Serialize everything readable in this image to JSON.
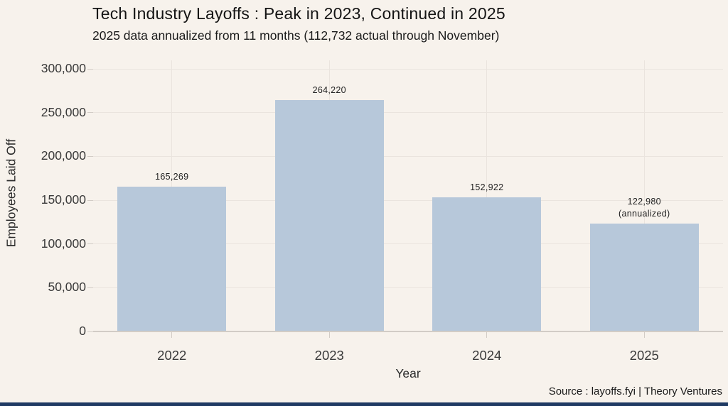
{
  "header": {
    "title": "Tech Industry Layoffs : Peak in 2023, Continued in 2025",
    "subtitle": "2025 data annualized from 11 months (112,732 actual through November)"
  },
  "chart_data": {
    "type": "bar",
    "title": "Tech Industry Layoffs : Peak in 2023, Continued in 2025",
    "subtitle": "2025 data annualized from 11 months (112,732 actual through November)",
    "categories": [
      "2022",
      "2023",
      "2024",
      "2025"
    ],
    "values": [
      165269,
      264220,
      152922,
      122980
    ],
    "bar_value_labels": [
      [
        "165,269"
      ],
      [
        "264,220"
      ],
      [
        "152,922"
      ],
      [
        "122,980",
        "(annualized)"
      ]
    ],
    "xlabel": "Year",
    "ylabel": "Employees Laid Off",
    "ylim": [
      0,
      300000
    ],
    "yticks": [
      0,
      50000,
      100000,
      150000,
      200000,
      250000,
      300000
    ],
    "ytick_labels": [
      "0",
      "50,000",
      "100,000",
      "150,000",
      "200,000",
      "250,000",
      "300,000"
    ],
    "grid": true,
    "legend": "none",
    "note": "2025 value is annualized",
    "bar_color": "#b7c8da",
    "background_color": "#f7f2ec",
    "gridline_color": "#eae4de",
    "accent_color": "#1f3a63"
  },
  "footer": {
    "source": "Source : layoffs.fyi | Theory Ventures"
  }
}
